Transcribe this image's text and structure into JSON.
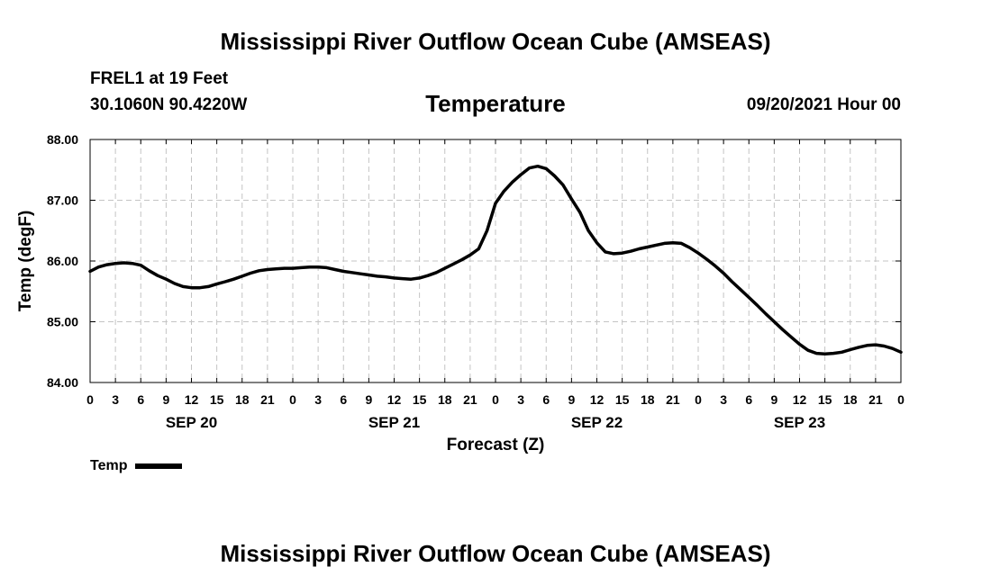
{
  "page": {
    "title_top": "Mississippi River Outflow Ocean Cube (AMSEAS)",
    "title_bottom": "Mississippi River Outflow Ocean Cube (AMSEAS)",
    "station_name": "FREL1 at 19 Feet",
    "station_coords": "30.1060N  90.4220W",
    "chart_title": "Temperature",
    "date": "09/20/2021 Hour 00"
  },
  "chart_data": {
    "type": "line",
    "title": "Temperature",
    "xlabel": "Forecast (Z)",
    "ylabel": "Temp (degF)",
    "ylim": [
      84.0,
      88.0
    ],
    "yticks": [
      "84.00",
      "85.00",
      "86.00",
      "87.00",
      "88.00"
    ],
    "xlim_hours": [
      0,
      96
    ],
    "xtick_labels": [
      "0",
      "3",
      "6",
      "9",
      "12",
      "15",
      "18",
      "21",
      "0",
      "3",
      "6",
      "9",
      "12",
      "15",
      "18",
      "21",
      "0",
      "3",
      "6",
      "9",
      "12",
      "15",
      "18",
      "21",
      "0",
      "3",
      "6",
      "9",
      "12",
      "15",
      "18",
      "21",
      "0"
    ],
    "day_labels": [
      {
        "label": "SEP 20",
        "hour": 12
      },
      {
        "label": "SEP 21",
        "hour": 36
      },
      {
        "label": "SEP 22",
        "hour": 60
      },
      {
        "label": "SEP 23",
        "hour": 84
      }
    ],
    "grid": true,
    "legend": "bottom-left",
    "series": [
      {
        "name": "Temp",
        "color": "#000000",
        "x_hours": [
          0,
          1,
          2,
          3,
          4,
          5,
          6,
          7,
          8,
          9,
          10,
          11,
          12,
          13,
          14,
          15,
          16,
          17,
          18,
          19,
          20,
          21,
          22,
          23,
          24,
          25,
          26,
          27,
          28,
          29,
          30,
          31,
          32,
          33,
          34,
          35,
          36,
          37,
          38,
          39,
          40,
          41,
          42,
          43,
          44,
          45,
          46,
          47,
          48,
          49,
          50,
          51,
          52,
          53,
          54,
          55,
          56,
          57,
          58,
          59,
          60,
          61,
          62,
          63,
          64,
          65,
          66,
          67,
          68,
          69,
          70,
          71,
          72,
          73,
          74,
          75,
          76,
          77,
          78,
          79,
          80,
          81,
          82,
          83,
          84,
          85,
          86,
          87,
          88,
          89,
          90,
          91,
          92,
          93,
          94,
          95,
          96
        ],
        "y": [
          85.83,
          85.9,
          85.94,
          85.96,
          85.97,
          85.96,
          85.93,
          85.84,
          85.76,
          85.7,
          85.63,
          85.58,
          85.56,
          85.56,
          85.58,
          85.62,
          85.66,
          85.7,
          85.75,
          85.8,
          85.84,
          85.86,
          85.87,
          85.88,
          85.88,
          85.89,
          85.9,
          85.9,
          85.89,
          85.86,
          85.83,
          85.81,
          85.79,
          85.77,
          85.75,
          85.74,
          85.72,
          85.71,
          85.7,
          85.72,
          85.76,
          85.81,
          85.88,
          85.95,
          86.02,
          86.1,
          86.2,
          86.5,
          86.95,
          87.15,
          87.3,
          87.42,
          87.53,
          87.56,
          87.52,
          87.4,
          87.25,
          87.02,
          86.8,
          86.5,
          86.3,
          86.15,
          86.12,
          86.13,
          86.16,
          86.2,
          86.23,
          86.26,
          86.29,
          86.3,
          86.29,
          86.22,
          86.13,
          86.03,
          85.92,
          85.8,
          85.66,
          85.53,
          85.4,
          85.27,
          85.13,
          85.0,
          84.87,
          84.75,
          84.63,
          84.53,
          84.48,
          84.47,
          84.48,
          84.5,
          84.54,
          84.58,
          84.61,
          84.62,
          84.6,
          84.56,
          84.5
        ]
      }
    ]
  }
}
